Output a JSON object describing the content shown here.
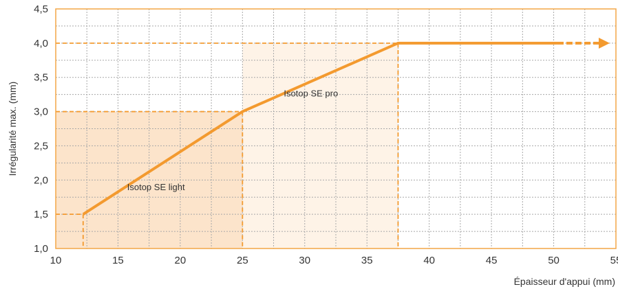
{
  "chart_data": {
    "type": "line",
    "xlabel": "Épaisseur d'appui (mm)",
    "ylabel": "Irrégularité max. (mm)",
    "xlim": [
      10,
      55
    ],
    "ylim": [
      1.0,
      4.5
    ],
    "x_ticks": [
      10,
      15,
      20,
      25,
      30,
      35,
      40,
      45,
      50,
      55
    ],
    "x_tick_labels": [
      "10",
      "15",
      "20",
      "25",
      "30",
      "35",
      "40",
      "45",
      "50",
      "55"
    ],
    "y_ticks": [
      1.0,
      1.5,
      2.0,
      2.5,
      3.0,
      3.5,
      4.0,
      4.5
    ],
    "y_tick_labels": [
      "1,0",
      "1,5",
      "2,0",
      "2,5",
      "3,0",
      "3,5",
      "4,0",
      "4,5"
    ],
    "grid": true,
    "series": [
      {
        "x": [
          12.2,
          25,
          37.5,
          50.3
        ],
        "y": [
          1.5,
          3.0,
          4.0,
          4.0
        ],
        "extension": {
          "x": [
            50.3,
            54.5
          ],
          "y": [
            4.0,
            4.0
          ],
          "style": "dashed-arrow"
        }
      }
    ],
    "regions": [
      {
        "label": "Isotop SE light",
        "x": [
          10,
          25
        ],
        "y": [
          1.0,
          3.0
        ]
      },
      {
        "label": "Isotop SE pro",
        "x": [
          25,
          37.5
        ],
        "y": [
          1.0,
          4.0
        ]
      }
    ],
    "reference_lines": [
      {
        "x": 12.2,
        "y": 1.5
      },
      {
        "x": 25,
        "y": 3.0
      },
      {
        "x": 37.5,
        "y": 4.0
      }
    ],
    "colors": {
      "line": "#F39A2F",
      "frame": "#F3A646",
      "region_light": "#FCE4CB",
      "region_pro": "#FEF3E7",
      "grid": "#A8A8A8"
    }
  }
}
